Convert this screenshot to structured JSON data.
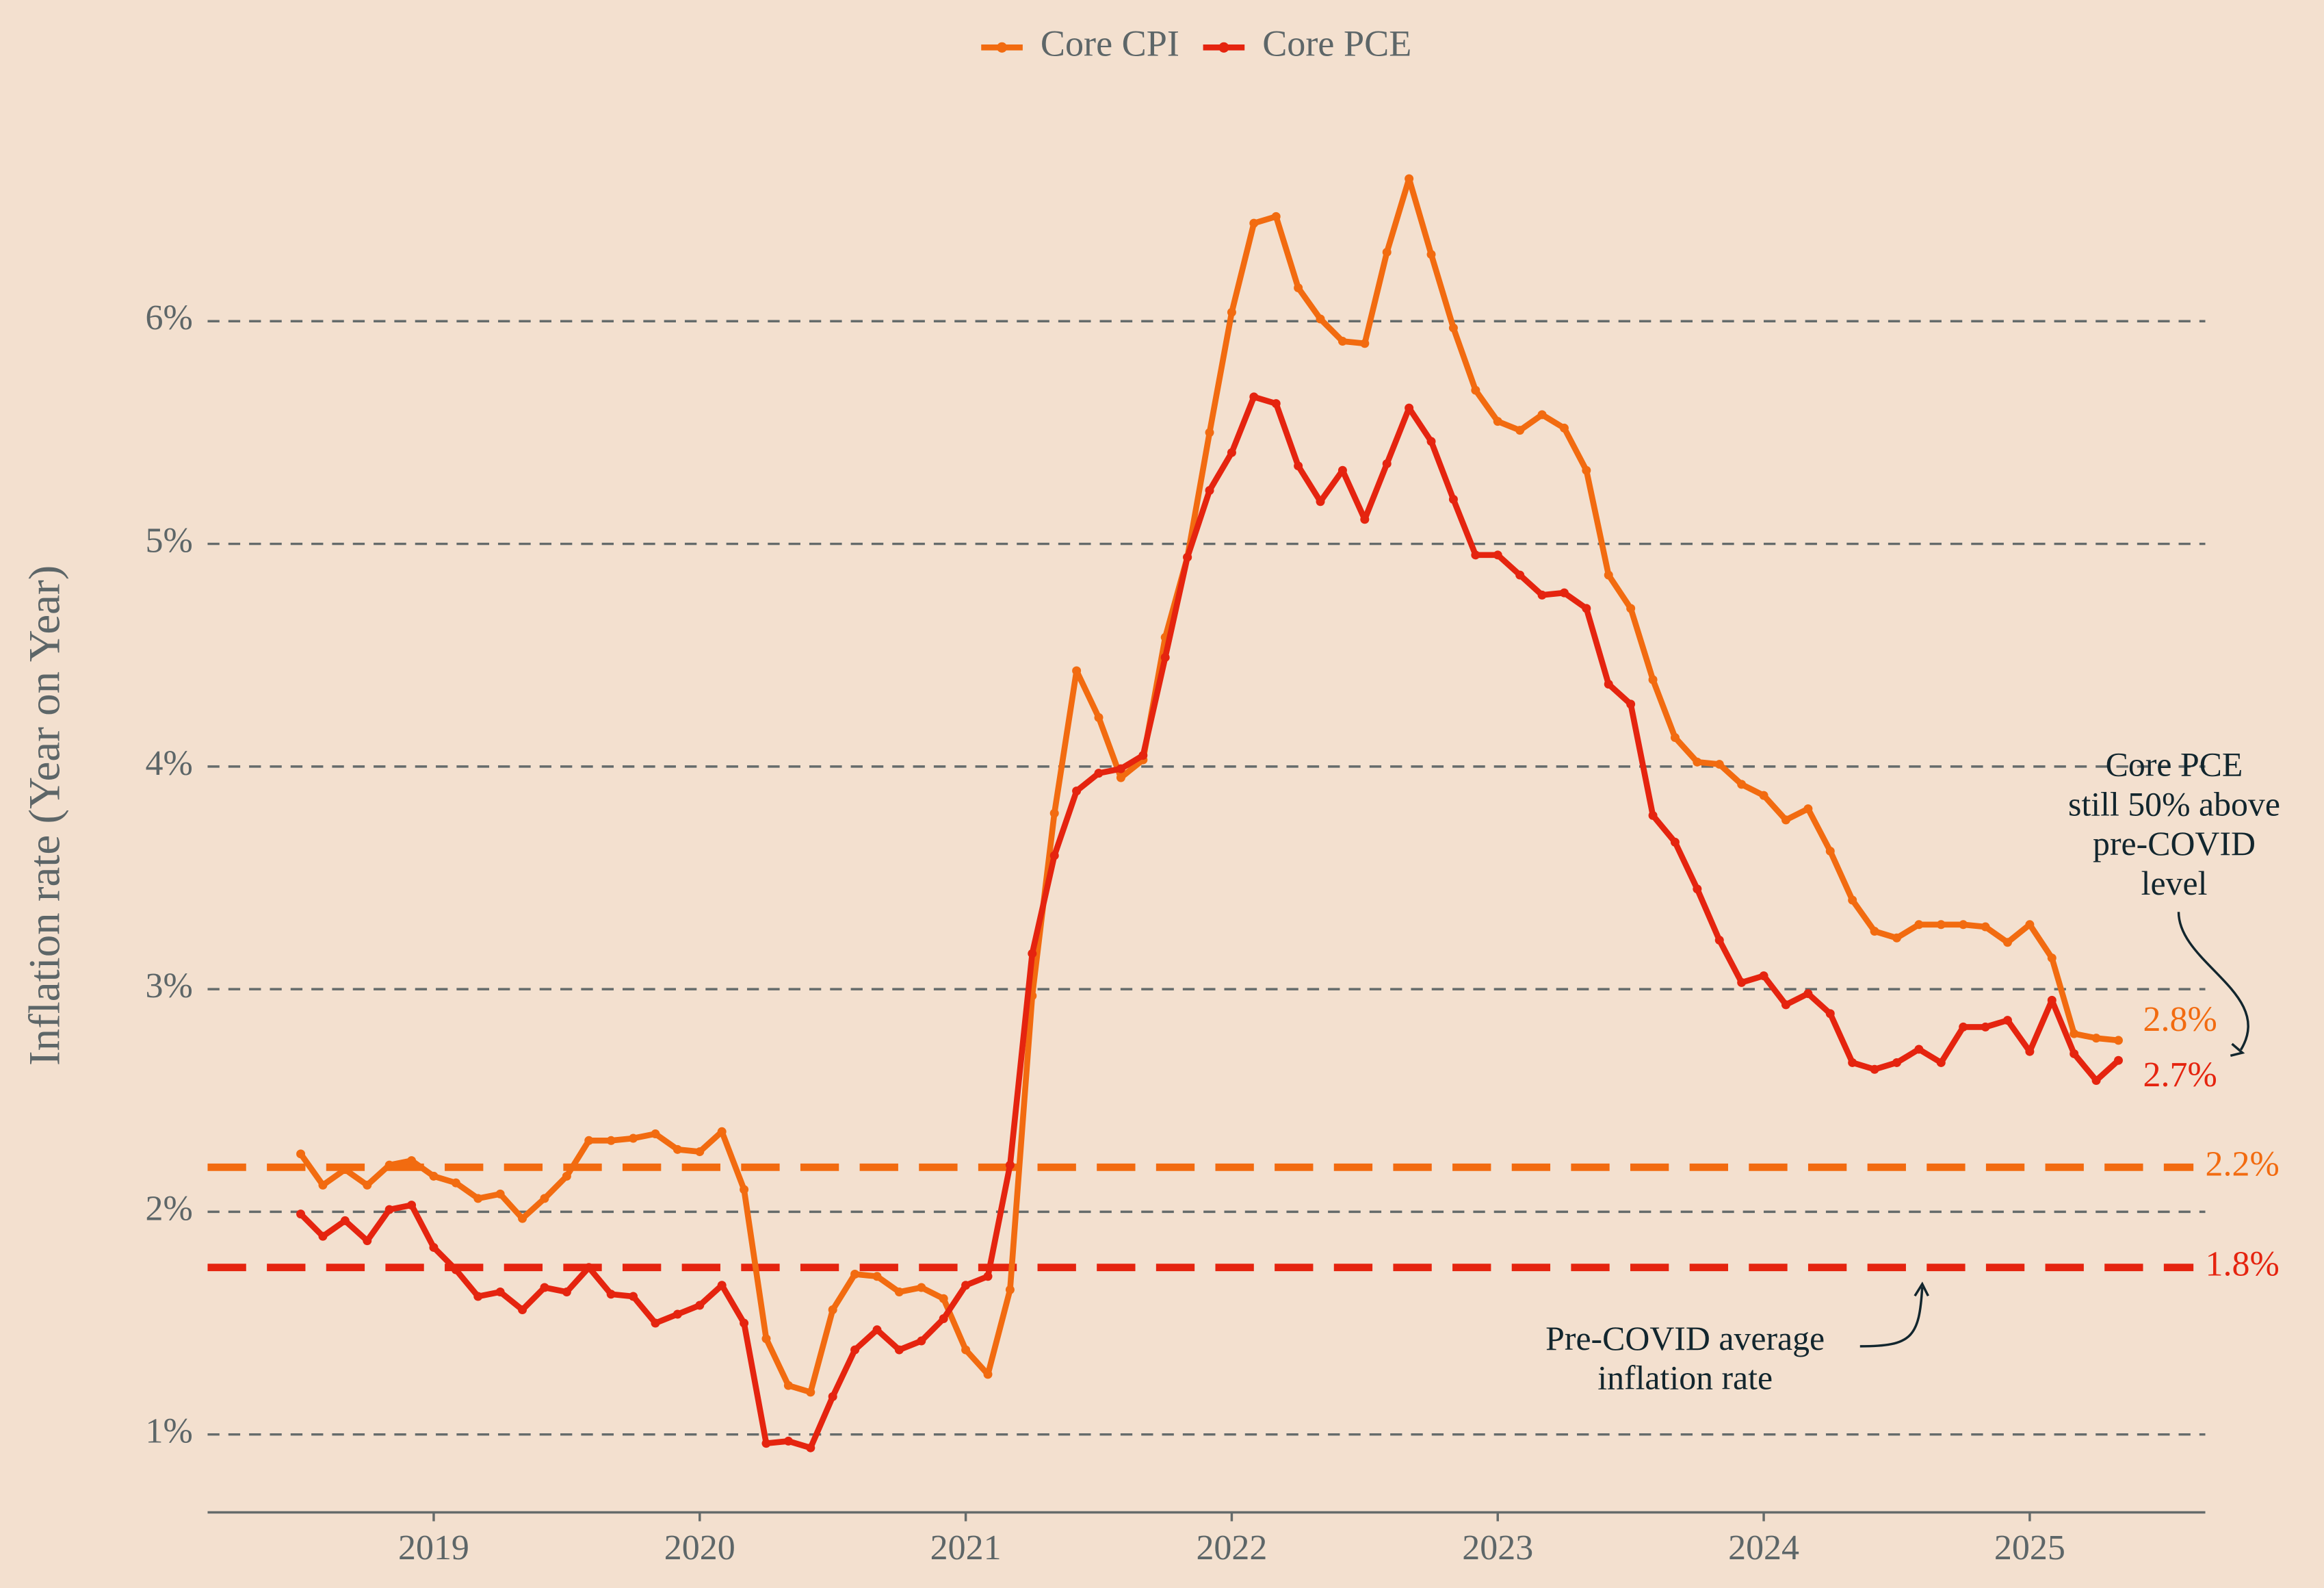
{
  "chart_data": {
    "type": "line",
    "legend_position": "top",
    "y_label": "Inflation rate (Year on Year)",
    "x": [
      "2018-07",
      "2018-08",
      "2018-09",
      "2018-10",
      "2018-11",
      "2018-12",
      "2019-01",
      "2019-02",
      "2019-03",
      "2019-04",
      "2019-05",
      "2019-06",
      "2019-07",
      "2019-08",
      "2019-09",
      "2019-10",
      "2019-11",
      "2019-12",
      "2020-01",
      "2020-02",
      "2020-03",
      "2020-04",
      "2020-05",
      "2020-06",
      "2020-07",
      "2020-08",
      "2020-09",
      "2020-10",
      "2020-11",
      "2020-12",
      "2021-01",
      "2021-02",
      "2021-03",
      "2021-04",
      "2021-05",
      "2021-06",
      "2021-07",
      "2021-08",
      "2021-09",
      "2021-10",
      "2021-11",
      "2021-12",
      "2022-01",
      "2022-02",
      "2022-03",
      "2022-04",
      "2022-05",
      "2022-06",
      "2022-07",
      "2022-08",
      "2022-09",
      "2022-10",
      "2022-11",
      "2022-12",
      "2023-01",
      "2023-02",
      "2023-03",
      "2023-04",
      "2023-05",
      "2023-06",
      "2023-07",
      "2023-08",
      "2023-09",
      "2023-10",
      "2023-11",
      "2023-12",
      "2024-01",
      "2024-02",
      "2024-03",
      "2024-04",
      "2024-05",
      "2024-06",
      "2024-07",
      "2024-08",
      "2024-09",
      "2024-10",
      "2024-11",
      "2024-12",
      "2025-01",
      "2025-02",
      "2025-03",
      "2025-04",
      "2025-05"
    ],
    "series": [
      {
        "name": "Core CPI",
        "color": "#f26b10",
        "end_label": "2.8%",
        "values": [
          2.26,
          2.12,
          2.19,
          2.12,
          2.21,
          2.23,
          2.16,
          2.13,
          2.06,
          2.08,
          1.97,
          2.06,
          2.16,
          2.32,
          2.32,
          2.33,
          2.35,
          2.28,
          2.27,
          2.36,
          2.1,
          1.43,
          1.22,
          1.19,
          1.56,
          1.72,
          1.71,
          1.64,
          1.66,
          1.61,
          1.38,
          1.27,
          1.65,
          2.97,
          3.79,
          4.43,
          4.22,
          3.95,
          4.03,
          4.58,
          4.94,
          5.5,
          6.04,
          6.44,
          6.47,
          6.15,
          6.01,
          5.91,
          5.9,
          6.31,
          6.64,
          6.3,
          5.97,
          5.69,
          5.55,
          5.51,
          5.58,
          5.52,
          5.33,
          4.86,
          4.71,
          4.39,
          4.13,
          4.02,
          4.01,
          3.92,
          3.87,
          3.76,
          3.81,
          3.62,
          3.4,
          3.26,
          3.23,
          3.29,
          3.29,
          3.29,
          3.28,
          3.21,
          3.29,
          3.14,
          2.8,
          2.78,
          2.77
        ]
      },
      {
        "name": "Core PCE",
        "color": "#e5240f",
        "end_label": "2.7%",
        "values": [
          1.99,
          1.89,
          1.96,
          1.87,
          2.01,
          2.03,
          1.84,
          1.74,
          1.62,
          1.64,
          1.56,
          1.66,
          1.64,
          1.75,
          1.63,
          1.62,
          1.5,
          1.54,
          1.58,
          1.67,
          1.5,
          0.96,
          0.97,
          0.94,
          1.17,
          1.38,
          1.47,
          1.38,
          1.42,
          1.52,
          1.67,
          1.71,
          2.21,
          3.16,
          3.6,
          3.89,
          3.97,
          3.99,
          4.05,
          4.49,
          4.94,
          5.24,
          5.41,
          5.66,
          5.63,
          5.35,
          5.19,
          5.33,
          5.11,
          5.36,
          5.61,
          5.46,
          5.2,
          4.95,
          4.95,
          4.86,
          4.77,
          4.78,
          4.71,
          4.37,
          4.28,
          3.78,
          3.66,
          3.45,
          3.22,
          3.03,
          3.06,
          2.93,
          2.98,
          2.89,
          2.67,
          2.64,
          2.67,
          2.73,
          2.67,
          2.83,
          2.83,
          2.86,
          2.72,
          2.95,
          2.71,
          2.59,
          2.68
        ]
      }
    ],
    "reference_lines": [
      {
        "value": 2.2,
        "label": "2.2%",
        "color": "#f26b10"
      },
      {
        "value": 1.75,
        "label": "1.8%",
        "color": "#e5240f"
      }
    ],
    "annotations": [
      {
        "lines": [
          "Core PCE",
          "still 50% above",
          "pre-COVID",
          "level"
        ]
      },
      {
        "lines": [
          "Pre-COVID average",
          "inflation rate"
        ]
      }
    ],
    "xlim": [
      2018.15,
      2025.66
    ],
    "xticks": [
      2019,
      2020,
      2021,
      2022,
      2023,
      2024,
      2025
    ],
    "ylim": [
      0.65,
      6.85
    ],
    "yticks": [
      {
        "value": 1,
        "label": "1%"
      },
      {
        "value": 2,
        "label": "2%"
      },
      {
        "value": 3,
        "label": "3%"
      },
      {
        "value": 4,
        "label": "4%"
      },
      {
        "value": 5,
        "label": "5%"
      },
      {
        "value": 6,
        "label": "6%"
      }
    ],
    "grid": true
  }
}
